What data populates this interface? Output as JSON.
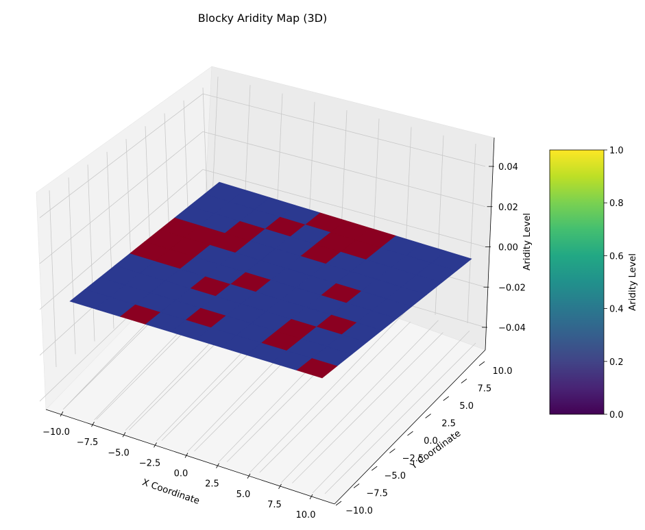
{
  "chart_data": {
    "type": "surface3d",
    "title": "Blocky Aridity Map (3D)",
    "xlabel": "X Coordinate",
    "ylabel": "Y Coordinate",
    "zlabel": "Aridity Level",
    "xlim": [
      -11,
      11
    ],
    "ylim": [
      -11,
      11
    ],
    "zlim": [
      -0.05,
      0.05
    ],
    "x_ticks": [
      "−10.0",
      "−7.5",
      "−5.0",
      "−2.5",
      "0.0",
      "2.5",
      "5.0",
      "7.5",
      "10.0"
    ],
    "y_ticks": [
      "−10.0",
      "−7.5",
      "−5.0",
      "−2.5",
      "0.0",
      "2.5",
      "5.0",
      "7.5",
      "10.0"
    ],
    "z_ticks": [
      "−0.04",
      "−0.02",
      "0.00",
      "0.02",
      "0.04"
    ],
    "grid": true,
    "surface_z": 0,
    "grid_cells": 10,
    "cell_size": 2,
    "low_color": "#2b3990",
    "high_color": "#8b0021",
    "arid_cells": [
      [
        0,
        4
      ],
      [
        0,
        5
      ],
      [
        0,
        6
      ],
      [
        1,
        3
      ],
      [
        1,
        5
      ],
      [
        1,
        6
      ],
      [
        2,
        2
      ],
      [
        2,
        5
      ],
      [
        3,
        0
      ],
      [
        3,
        1
      ],
      [
        3,
        2
      ],
      [
        4,
        0
      ],
      [
        4,
        1
      ],
      [
        4,
        7
      ],
      [
        5,
        0
      ],
      [
        5,
        1
      ],
      [
        5,
        4
      ],
      [
        6,
        3
      ],
      [
        6,
        8
      ],
      [
        7,
        7
      ],
      [
        8,
        4
      ],
      [
        8,
        7
      ],
      [
        9,
        2
      ],
      [
        9,
        9
      ]
    ],
    "colorbar": {
      "label": "Aridity Level",
      "colormap": "viridis",
      "range": [
        0,
        1
      ],
      "ticks": [
        "0.0",
        "0.2",
        "0.4",
        "0.6",
        "0.8",
        "1.0"
      ]
    }
  }
}
